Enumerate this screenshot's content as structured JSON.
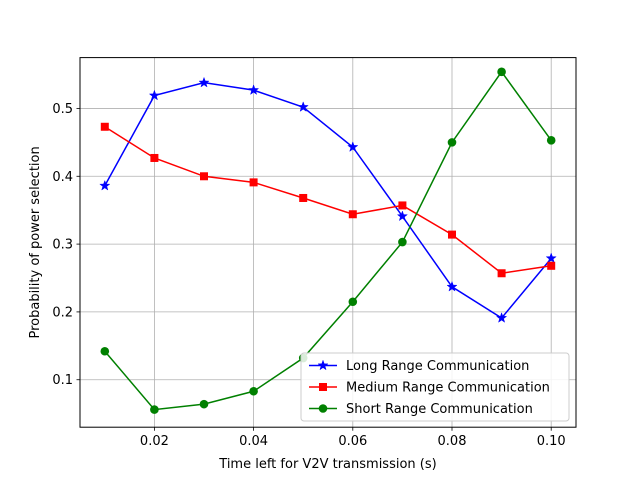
{
  "chart_data": {
    "type": "line",
    "title": "",
    "xlabel": "Time left for V2V transmission (s)",
    "ylabel": "Probability of power selection",
    "xlim": [
      0.005,
      0.105
    ],
    "ylim": [
      0.03,
      0.575
    ],
    "xticks": [
      0.02,
      0.04,
      0.06,
      0.08,
      0.1
    ],
    "xtick_labels": [
      "0.02",
      "0.04",
      "0.06",
      "0.08",
      "0.10"
    ],
    "yticks": [
      0.1,
      0.2,
      0.3,
      0.4,
      0.5
    ],
    "ytick_labels": [
      "0.1",
      "0.2",
      "0.3",
      "0.4",
      "0.5"
    ],
    "grid": true,
    "legend_position": "bottom-right",
    "x": [
      0.01,
      0.02,
      0.03,
      0.04,
      0.05,
      0.06,
      0.07,
      0.08,
      0.09,
      0.1
    ],
    "series": [
      {
        "name": "Long Range Communication",
        "color": "#0000ff",
        "marker": "star",
        "values": [
          0.386,
          0.519,
          0.538,
          0.527,
          0.502,
          0.443,
          0.341,
          0.237,
          0.191,
          0.279
        ]
      },
      {
        "name": "Medium Range Communication",
        "color": "#ff0000",
        "marker": "square",
        "values": [
          0.473,
          0.427,
          0.4,
          0.391,
          0.368,
          0.344,
          0.357,
          0.314,
          0.257,
          0.268
        ]
      },
      {
        "name": "Short Range Communication",
        "color": "#008000",
        "marker": "circle",
        "values": [
          0.142,
          0.056,
          0.064,
          0.083,
          0.132,
          0.215,
          0.303,
          0.45,
          0.554,
          0.453
        ]
      }
    ]
  }
}
